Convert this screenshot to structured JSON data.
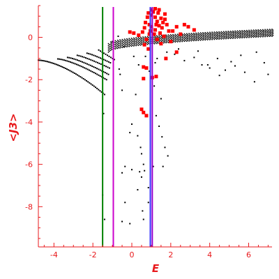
{
  "chart_data": {
    "type": "scatter",
    "xlabel": "E",
    "ylabel": "<J3>",
    "xlim": [
      -4.8,
      7.2
    ],
    "ylim": [
      -9.9,
      1.5
    ],
    "xticks": [
      -4,
      -2,
      0,
      2,
      4,
      6
    ],
    "yticks": [
      -8,
      -6,
      -4,
      -2,
      0
    ],
    "grid": false,
    "colors": {
      "axis": "#e8191c",
      "black_points": "#000000",
      "red_points": "#ff0000",
      "green_line": "#008000",
      "magenta_line": "#cc00cc",
      "blue_line": "#3333ff",
      "purple_line": "#9900cc"
    },
    "vertical_lines": [
      {
        "x": -1.5,
        "color": "#008000"
      },
      {
        "x": -0.95,
        "color": "#cc00cc"
      },
      {
        "x": 0.95,
        "color": "#3333ff"
      },
      {
        "x": 1.05,
        "color": "#9900cc"
      }
    ],
    "branches": [
      {
        "x0": -4.8,
        "y0": -1.08,
        "x1": -1.4,
        "y1": -2.7,
        "n": 45,
        "curve": 1.6
      },
      {
        "x0": -3.8,
        "y0": -1.02,
        "x1": -1.3,
        "y1": -2.0,
        "n": 32,
        "curve": 1.4
      },
      {
        "x0": -3.3,
        "y0": -0.95,
        "x1": -1.2,
        "y1": -1.75,
        "n": 26,
        "curve": 1.3
      },
      {
        "x0": -2.8,
        "y0": -0.85,
        "x1": -1.15,
        "y1": -1.45,
        "n": 20,
        "curve": 1.2
      },
      {
        "x0": -2.3,
        "y0": -0.75,
        "x1": -1.1,
        "y1": -1.2,
        "n": 15,
        "curve": 1.2
      },
      {
        "x0": -1.7,
        "y0": -0.6,
        "x1": -0.9,
        "y1": -1.05,
        "n": 10,
        "curve": 1.0
      }
    ],
    "band": {
      "x_start": -1.2,
      "x_end": 7.2,
      "rows": 9,
      "cols": 72,
      "y_low_start": -0.7,
      "y_high_start": -0.3,
      "y_low_end": 0.05,
      "y_high_end": 0.38
    },
    "black_points": [
      [
        -1.45,
        -3.6
      ],
      [
        -1.5,
        -7.45
      ],
      [
        -1.4,
        -8.6
      ],
      [
        -0.35,
        -6.1
      ],
      [
        -0.5,
        -8.7
      ],
      [
        0.0,
        -6.25
      ],
      [
        0.3,
        -7.2
      ],
      [
        0.5,
        -6.6
      ],
      [
        0.85,
        -7.1
      ],
      [
        -0.1,
        -8.8
      ],
      [
        -0.1,
        -4.5
      ],
      [
        0.3,
        -4.65
      ],
      [
        0.45,
        -5.2
      ],
      [
        0.5,
        -5.5
      ],
      [
        0.6,
        -6.0
      ],
      [
        0.4,
        -6.35
      ],
      [
        0.65,
        -6.3
      ],
      [
        0.85,
        -7.8
      ],
      [
        0.55,
        -8.2
      ],
      [
        0.6,
        -8.6
      ],
      [
        1.25,
        -3.7
      ],
      [
        1.4,
        -4.2
      ],
      [
        1.55,
        -4.7
      ],
      [
        1.7,
        -5.2
      ],
      [
        1.85,
        -5.6
      ],
      [
        1.6,
        -6.1
      ],
      [
        0.2,
        -2.7
      ],
      [
        1.5,
        -2.9
      ],
      [
        -0.65,
        -1.5
      ],
      [
        -0.6,
        -1.75
      ],
      [
        1.15,
        -2.3
      ],
      [
        -0.5,
        -2.5
      ],
      [
        0.35,
        -1.3
      ],
      [
        0.9,
        -1.6
      ],
      [
        0.0,
        -4.1
      ],
      [
        -0.35,
        -7.8
      ],
      [
        1.1,
        -6.1
      ],
      [
        -0.5,
        -6.4
      ],
      [
        -1.0,
        -0.2
      ],
      [
        -0.7,
        0.05
      ],
      [
        2.7,
        -1.1
      ],
      [
        3.2,
        -0.95
      ],
      [
        3.6,
        -1.3
      ],
      [
        4.0,
        -1.45
      ],
      [
        4.4,
        -1.0
      ],
      [
        4.8,
        -1.55
      ],
      [
        5.3,
        -1.35
      ],
      [
        5.8,
        -1.65
      ],
      [
        6.3,
        -2.1
      ],
      [
        6.8,
        -1.2
      ],
      [
        7.0,
        -1.75
      ],
      [
        3.9,
        -1.3
      ],
      [
        4.5,
        -1.8
      ],
      [
        5.1,
        -1.15
      ],
      [
        2.4,
        -0.55
      ],
      [
        1.8,
        -0.7
      ],
      [
        2.2,
        -0.8
      ],
      [
        5.6,
        -0.85
      ],
      [
        6.4,
        -0.7
      ],
      [
        3.4,
        -0.65
      ],
      [
        1.2,
        -1.2
      ],
      [
        0.7,
        -0.9
      ],
      [
        1.3,
        -1.0
      ],
      [
        -0.4,
        -0.45
      ],
      [
        0.1,
        -0.9
      ]
    ],
    "red_points": [
      [
        0.55,
        0.25
      ],
      [
        0.65,
        0.45
      ],
      [
        0.7,
        0.7
      ],
      [
        0.8,
        0.95
      ],
      [
        0.9,
        0.6
      ],
      [
        1.0,
        1.05
      ],
      [
        1.1,
        1.2
      ],
      [
        1.2,
        0.95
      ],
      [
        1.3,
        0.75
      ],
      [
        1.4,
        0.55
      ],
      [
        1.2,
        0.35
      ],
      [
        1.35,
        1.15
      ],
      [
        1.5,
        0.9
      ],
      [
        1.6,
        0.7
      ],
      [
        1.7,
        0.85
      ],
      [
        1.8,
        0.6
      ],
      [
        1.9,
        0.3
      ],
      [
        1.15,
        0.15
      ],
      [
        0.95,
        0.3
      ],
      [
        0.75,
        -0.1
      ],
      [
        0.65,
        -0.35
      ],
      [
        0.85,
        -0.55
      ],
      [
        1.45,
        0.2
      ],
      [
        1.65,
        0.05
      ],
      [
        1.3,
        -0.1
      ],
      [
        -0.1,
        0.25
      ],
      [
        0.1,
        0.2
      ],
      [
        0.35,
        0.1
      ],
      [
        2.1,
        0.3
      ],
      [
        2.3,
        0.5
      ],
      [
        2.5,
        0.15
      ],
      [
        2.7,
        0.6
      ],
      [
        2.9,
        0.5
      ],
      [
        3.2,
        0.35
      ],
      [
        2.0,
        -0.2
      ],
      [
        2.3,
        -0.7
      ],
      [
        1.75,
        -1.0
      ],
      [
        1.05,
        -1.9
      ],
      [
        1.25,
        -1.85
      ],
      [
        0.6,
        -1.4
      ],
      [
        0.75,
        -1.45
      ],
      [
        0.6,
        -1.95
      ],
      [
        0.5,
        -3.4
      ],
      [
        0.6,
        -3.55
      ],
      [
        0.75,
        -3.7
      ],
      [
        1.5,
        -0.3
      ],
      [
        1.0,
        0.5
      ],
      [
        1.25,
        0.6
      ],
      [
        1.55,
        0.45
      ],
      [
        0.9,
        0.15
      ],
      [
        1.0,
        1.3
      ],
      [
        1.2,
        1.35
      ],
      [
        1.4,
        1.3
      ],
      [
        0.85,
        1.15
      ],
      [
        1.7,
        1.1
      ]
    ]
  }
}
